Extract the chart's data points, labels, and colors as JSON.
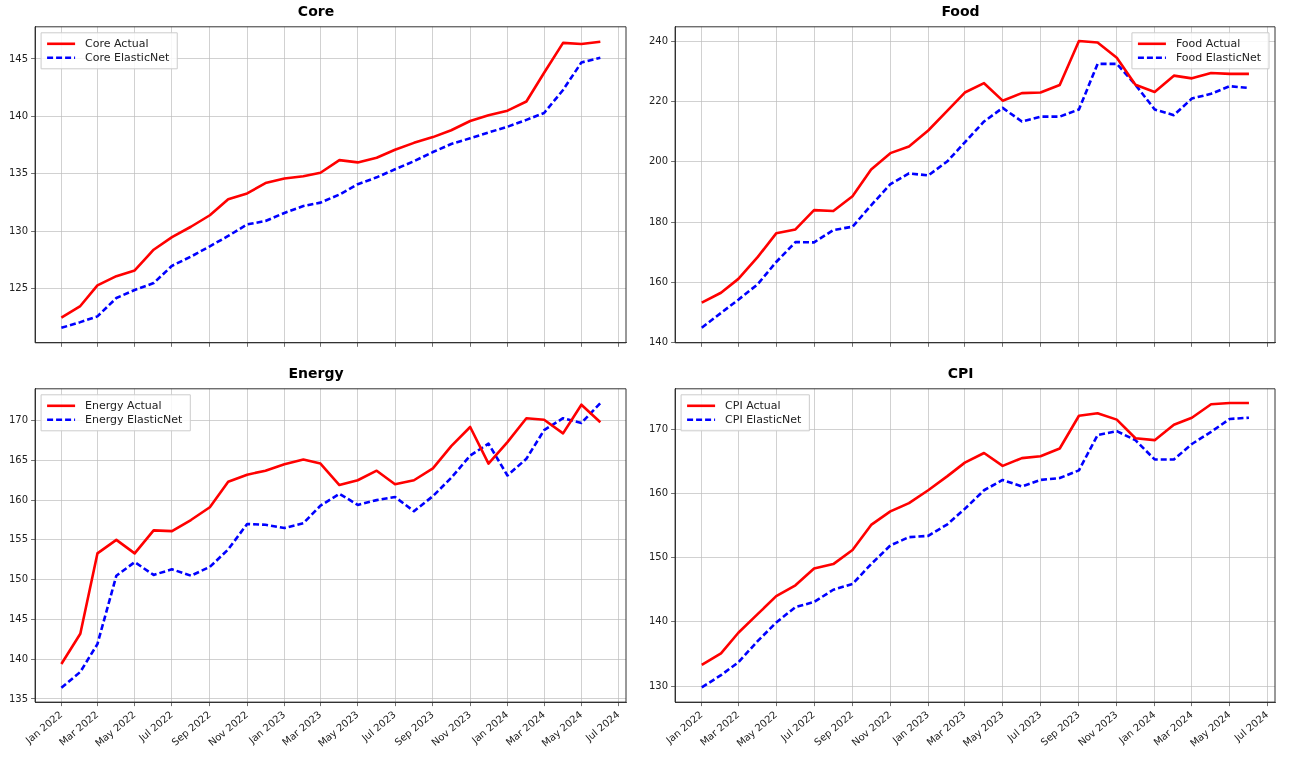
{
  "chart_data": [
    {
      "type": "line",
      "title": "Core",
      "x": [
        "2022-01",
        "2022-02",
        "2022-03",
        "2022-04",
        "2022-05",
        "2022-06",
        "2022-07",
        "2022-08",
        "2022-09",
        "2022-10",
        "2022-11",
        "2022-12",
        "2023-01",
        "2023-02",
        "2023-03",
        "2023-04",
        "2023-05",
        "2023-06",
        "2023-07",
        "2023-08",
        "2023-09",
        "2023-10",
        "2023-11",
        "2023-12",
        "2024-01",
        "2024-02",
        "2024-03",
        "2024-04",
        "2024-05",
        "2024-06"
      ],
      "series": [
        {
          "name": "Core Actual",
          "color": "#ff0000",
          "line_style": "solid",
          "values": [
            122.5,
            123.5,
            125.3,
            126.1,
            126.6,
            128.4,
            129.5,
            130.4,
            131.4,
            132.8,
            133.3,
            134.2,
            134.6,
            134.8,
            135.1,
            136.2,
            136.0,
            136.4,
            137.1,
            137.7,
            138.2,
            138.8,
            139.6,
            140.1,
            140.5,
            141.3,
            143.8,
            146.4,
            146.3,
            146.5
          ]
        },
        {
          "name": "Core ElasticNet",
          "color": "#0000ff",
          "line_style": "dashed",
          "values": [
            121.6,
            122.1,
            122.6,
            124.2,
            124.9,
            125.5,
            127.0,
            127.8,
            128.7,
            129.6,
            130.6,
            130.9,
            131.6,
            132.2,
            132.5,
            133.2,
            134.1,
            134.7,
            135.4,
            136.1,
            136.9,
            137.6,
            138.1,
            138.6,
            139.1,
            139.7,
            140.3,
            142.3,
            144.7,
            145.1
          ]
        }
      ],
      "xlim": [
        "2021-11-19",
        "2024-07-13"
      ],
      "xticks": [
        {
          "value": "2022-01",
          "label": null
        },
        {
          "value": "2022-03",
          "label": null
        },
        {
          "value": "2022-05",
          "label": null
        },
        {
          "value": "2022-07",
          "label": null
        },
        {
          "value": "2022-09",
          "label": null
        },
        {
          "value": "2022-11",
          "label": null
        },
        {
          "value": "2023-01",
          "label": null
        },
        {
          "value": "2023-03",
          "label": null
        },
        {
          "value": "2023-05",
          "label": null
        },
        {
          "value": "2023-07",
          "label": null
        },
        {
          "value": "2023-09",
          "label": null
        },
        {
          "value": "2023-11",
          "label": null
        },
        {
          "value": "2024-01",
          "label": null
        },
        {
          "value": "2024-03",
          "label": null
        },
        {
          "value": "2024-05",
          "label": null
        },
        {
          "value": "2024-07",
          "label": null
        }
      ],
      "ylim": [
        120.3,
        147.8
      ],
      "yticks": [
        125,
        130,
        135,
        140,
        145
      ],
      "grid": true,
      "legend": "top left",
      "tick_labels": "y"
    },
    {
      "type": "line",
      "title": "Food",
      "x": [
        "2022-01",
        "2022-02",
        "2022-03",
        "2022-04",
        "2022-05",
        "2022-06",
        "2022-07",
        "2022-08",
        "2022-09",
        "2022-10",
        "2022-11",
        "2022-12",
        "2023-01",
        "2023-02",
        "2023-03",
        "2023-04",
        "2023-05",
        "2023-06",
        "2023-07",
        "2023-08",
        "2023-09",
        "2023-10",
        "2023-11",
        "2023-12",
        "2024-01",
        "2024-02",
        "2024-03",
        "2024-04",
        "2024-05",
        "2024-06"
      ],
      "series": [
        {
          "name": "Food Actual",
          "color": "#ff0000",
          "line_style": "solid",
          "values": [
            153.3,
            156.6,
            161.2,
            168.4,
            176.3,
            177.6,
            184.0,
            183.7,
            188.6,
            197.5,
            202.9,
            205.1,
            210.4,
            217.0,
            223.0,
            226.1,
            220.3,
            222.8,
            223.0,
            225.5,
            240.1,
            239.6,
            234.5,
            225.6,
            223.2,
            228.6,
            227.7,
            229.5,
            229.2,
            229.2
          ]
        },
        {
          "name": "Food ElasticNet",
          "color": "#0000ff",
          "line_style": "dashed",
          "values": [
            145.0,
            149.9,
            154.3,
            159.4,
            166.8,
            173.4,
            173.3,
            177.4,
            178.5,
            185.6,
            192.6,
            196.2,
            195.5,
            200.2,
            206.5,
            213.4,
            217.9,
            213.4,
            215.0,
            215.0,
            217.4,
            232.5,
            232.5,
            225.6,
            217.4,
            215.5,
            221.0,
            222.6,
            225.1,
            224.5
          ]
        }
      ],
      "xlim": [
        "2021-11-19",
        "2024-07-13"
      ],
      "xticks": [
        {
          "value": "2022-01",
          "label": null
        },
        {
          "value": "2022-03",
          "label": null
        },
        {
          "value": "2022-05",
          "label": null
        },
        {
          "value": "2022-07",
          "label": null
        },
        {
          "value": "2022-09",
          "label": null
        },
        {
          "value": "2022-11",
          "label": null
        },
        {
          "value": "2023-01",
          "label": null
        },
        {
          "value": "2023-03",
          "label": null
        },
        {
          "value": "2023-05",
          "label": null
        },
        {
          "value": "2023-07",
          "label": null
        },
        {
          "value": "2023-09",
          "label": null
        },
        {
          "value": "2023-11",
          "label": null
        },
        {
          "value": "2024-01",
          "label": null
        },
        {
          "value": "2024-03",
          "label": null
        },
        {
          "value": "2024-05",
          "label": null
        },
        {
          "value": "2024-07",
          "label": null
        }
      ],
      "ylim": [
        140,
        244.8
      ],
      "yticks": [
        140,
        160,
        180,
        200,
        220,
        240
      ],
      "grid": true,
      "legend": "top right",
      "tick_labels": "y"
    },
    {
      "type": "line",
      "title": "Energy",
      "x": [
        "2022-01",
        "2022-02",
        "2022-03",
        "2022-04",
        "2022-05",
        "2022-06",
        "2022-07",
        "2022-08",
        "2022-09",
        "2022-10",
        "2022-11",
        "2022-12",
        "2023-01",
        "2023-02",
        "2023-03",
        "2023-04",
        "2023-05",
        "2023-06",
        "2023-07",
        "2023-08",
        "2023-09",
        "2023-10",
        "2023-11",
        "2023-12",
        "2024-01",
        "2024-02",
        "2024-03",
        "2024-04",
        "2024-05",
        "2024-06"
      ],
      "series": [
        {
          "name": "Energy Actual",
          "color": "#ff0000",
          "line_style": "solid",
          "values": [
            139.4,
            143.2,
            153.3,
            155.0,
            153.3,
            156.2,
            156.1,
            157.5,
            159.1,
            162.3,
            163.2,
            163.7,
            164.5,
            165.1,
            164.6,
            161.9,
            162.5,
            163.7,
            162.0,
            162.5,
            164.0,
            166.8,
            169.2,
            164.6,
            167.3,
            170.3,
            170.1,
            168.4,
            172.0,
            169.8
          ]
        },
        {
          "name": "Energy ElasticNet",
          "color": "#0000ff",
          "line_style": "dashed",
          "values": [
            136.4,
            138.4,
            141.9,
            150.5,
            152.2,
            150.6,
            151.3,
            150.5,
            151.6,
            153.8,
            157.0,
            156.9,
            156.5,
            157.1,
            159.3,
            160.8,
            159.4,
            160.0,
            160.4,
            158.6,
            160.5,
            162.8,
            165.6,
            167.1,
            163.1,
            165.2,
            168.8,
            170.3,
            169.7,
            172.2
          ]
        }
      ],
      "xlim": [
        "2021-11-19",
        "2024-07-13"
      ],
      "xticks": [
        {
          "value": "2022-01",
          "label": "Jan 2022"
        },
        {
          "value": "2022-03",
          "label": "Mar 2022"
        },
        {
          "value": "2022-05",
          "label": "May 2022"
        },
        {
          "value": "2022-07",
          "label": "Jul 2022"
        },
        {
          "value": "2022-09",
          "label": "Sep 2022"
        },
        {
          "value": "2022-11",
          "label": "Nov 2022"
        },
        {
          "value": "2023-01",
          "label": "Jan 2023"
        },
        {
          "value": "2023-03",
          "label": "Mar 2023"
        },
        {
          "value": "2023-05",
          "label": "May 2023"
        },
        {
          "value": "2023-07",
          "label": "Jul 2023"
        },
        {
          "value": "2023-09",
          "label": "Sep 2023"
        },
        {
          "value": "2023-11",
          "label": "Nov 2023"
        },
        {
          "value": "2024-01",
          "label": "Jan 2024"
        },
        {
          "value": "2024-03",
          "label": "Mar 2024"
        },
        {
          "value": "2024-05",
          "label": "May 2024"
        },
        {
          "value": "2024-07",
          "label": "Jul 2024"
        }
      ],
      "ylim": [
        134.6,
        174.0
      ],
      "yticks": [
        135,
        140,
        145,
        150,
        155,
        160,
        165,
        170
      ],
      "grid": true,
      "legend": "top left"
    },
    {
      "type": "line",
      "title": "CPI",
      "x": [
        "2022-01",
        "2022-02",
        "2022-03",
        "2022-04",
        "2022-05",
        "2022-06",
        "2022-07",
        "2022-08",
        "2022-09",
        "2022-10",
        "2022-11",
        "2022-12",
        "2023-01",
        "2023-02",
        "2023-03",
        "2023-04",
        "2023-05",
        "2023-06",
        "2023-07",
        "2023-08",
        "2023-09",
        "2023-10",
        "2023-11",
        "2023-12",
        "2024-01",
        "2024-02",
        "2024-03",
        "2024-04",
        "2024-05",
        "2024-06"
      ],
      "series": [
        {
          "name": "CPI Actual",
          "color": "#ff0000",
          "line_style": "solid",
          "values": [
            133.3,
            135.1,
            138.3,
            141.2,
            144.0,
            145.7,
            148.3,
            149.0,
            151.2,
            155.1,
            157.2,
            158.5,
            160.5,
            162.7,
            164.8,
            166.3,
            164.3,
            165.5,
            165.8,
            167.0,
            172.1,
            172.5,
            171.5,
            168.6,
            168.3,
            170.7,
            171.8,
            173.9,
            174.1,
            174.1
          ]
        },
        {
          "name": "CPI ElasticNet",
          "color": "#0000ff",
          "line_style": "dashed",
          "values": [
            129.8,
            131.7,
            133.7,
            137.0,
            139.9,
            142.3,
            143.1,
            145.0,
            145.9,
            149.0,
            151.9,
            153.2,
            153.4,
            155.2,
            157.6,
            160.5,
            162.1,
            161.1,
            162.1,
            162.4,
            163.6,
            169.1,
            169.7,
            168.3,
            165.3,
            165.3,
            167.7,
            169.6,
            171.6,
            171.8
          ]
        }
      ],
      "xlim": [
        "2021-11-19",
        "2024-07-13"
      ],
      "xticks": [
        {
          "value": "2022-01",
          "label": "Jan 2022"
        },
        {
          "value": "2022-03",
          "label": "Mar 2022"
        },
        {
          "value": "2022-05",
          "label": "May 2022"
        },
        {
          "value": "2022-07",
          "label": "Jul 2022"
        },
        {
          "value": "2022-09",
          "label": "Sep 2022"
        },
        {
          "value": "2022-11",
          "label": "Nov 2022"
        },
        {
          "value": "2023-01",
          "label": "Jan 2023"
        },
        {
          "value": "2023-03",
          "label": "Mar 2023"
        },
        {
          "value": "2023-05",
          "label": "May 2023"
        },
        {
          "value": "2023-07",
          "label": "Jul 2023"
        },
        {
          "value": "2023-09",
          "label": "Sep 2023"
        },
        {
          "value": "2023-11",
          "label": "Nov 2023"
        },
        {
          "value": "2024-01",
          "label": "Jan 2024"
        },
        {
          "value": "2024-03",
          "label": "Mar 2024"
        },
        {
          "value": "2024-05",
          "label": "May 2024"
        },
        {
          "value": "2024-07",
          "label": "Jul 2024"
        }
      ],
      "ylim": [
        127.5,
        176.3
      ],
      "yticks": [
        130,
        140,
        150,
        160,
        170
      ],
      "grid": true,
      "legend": "top left"
    }
  ]
}
